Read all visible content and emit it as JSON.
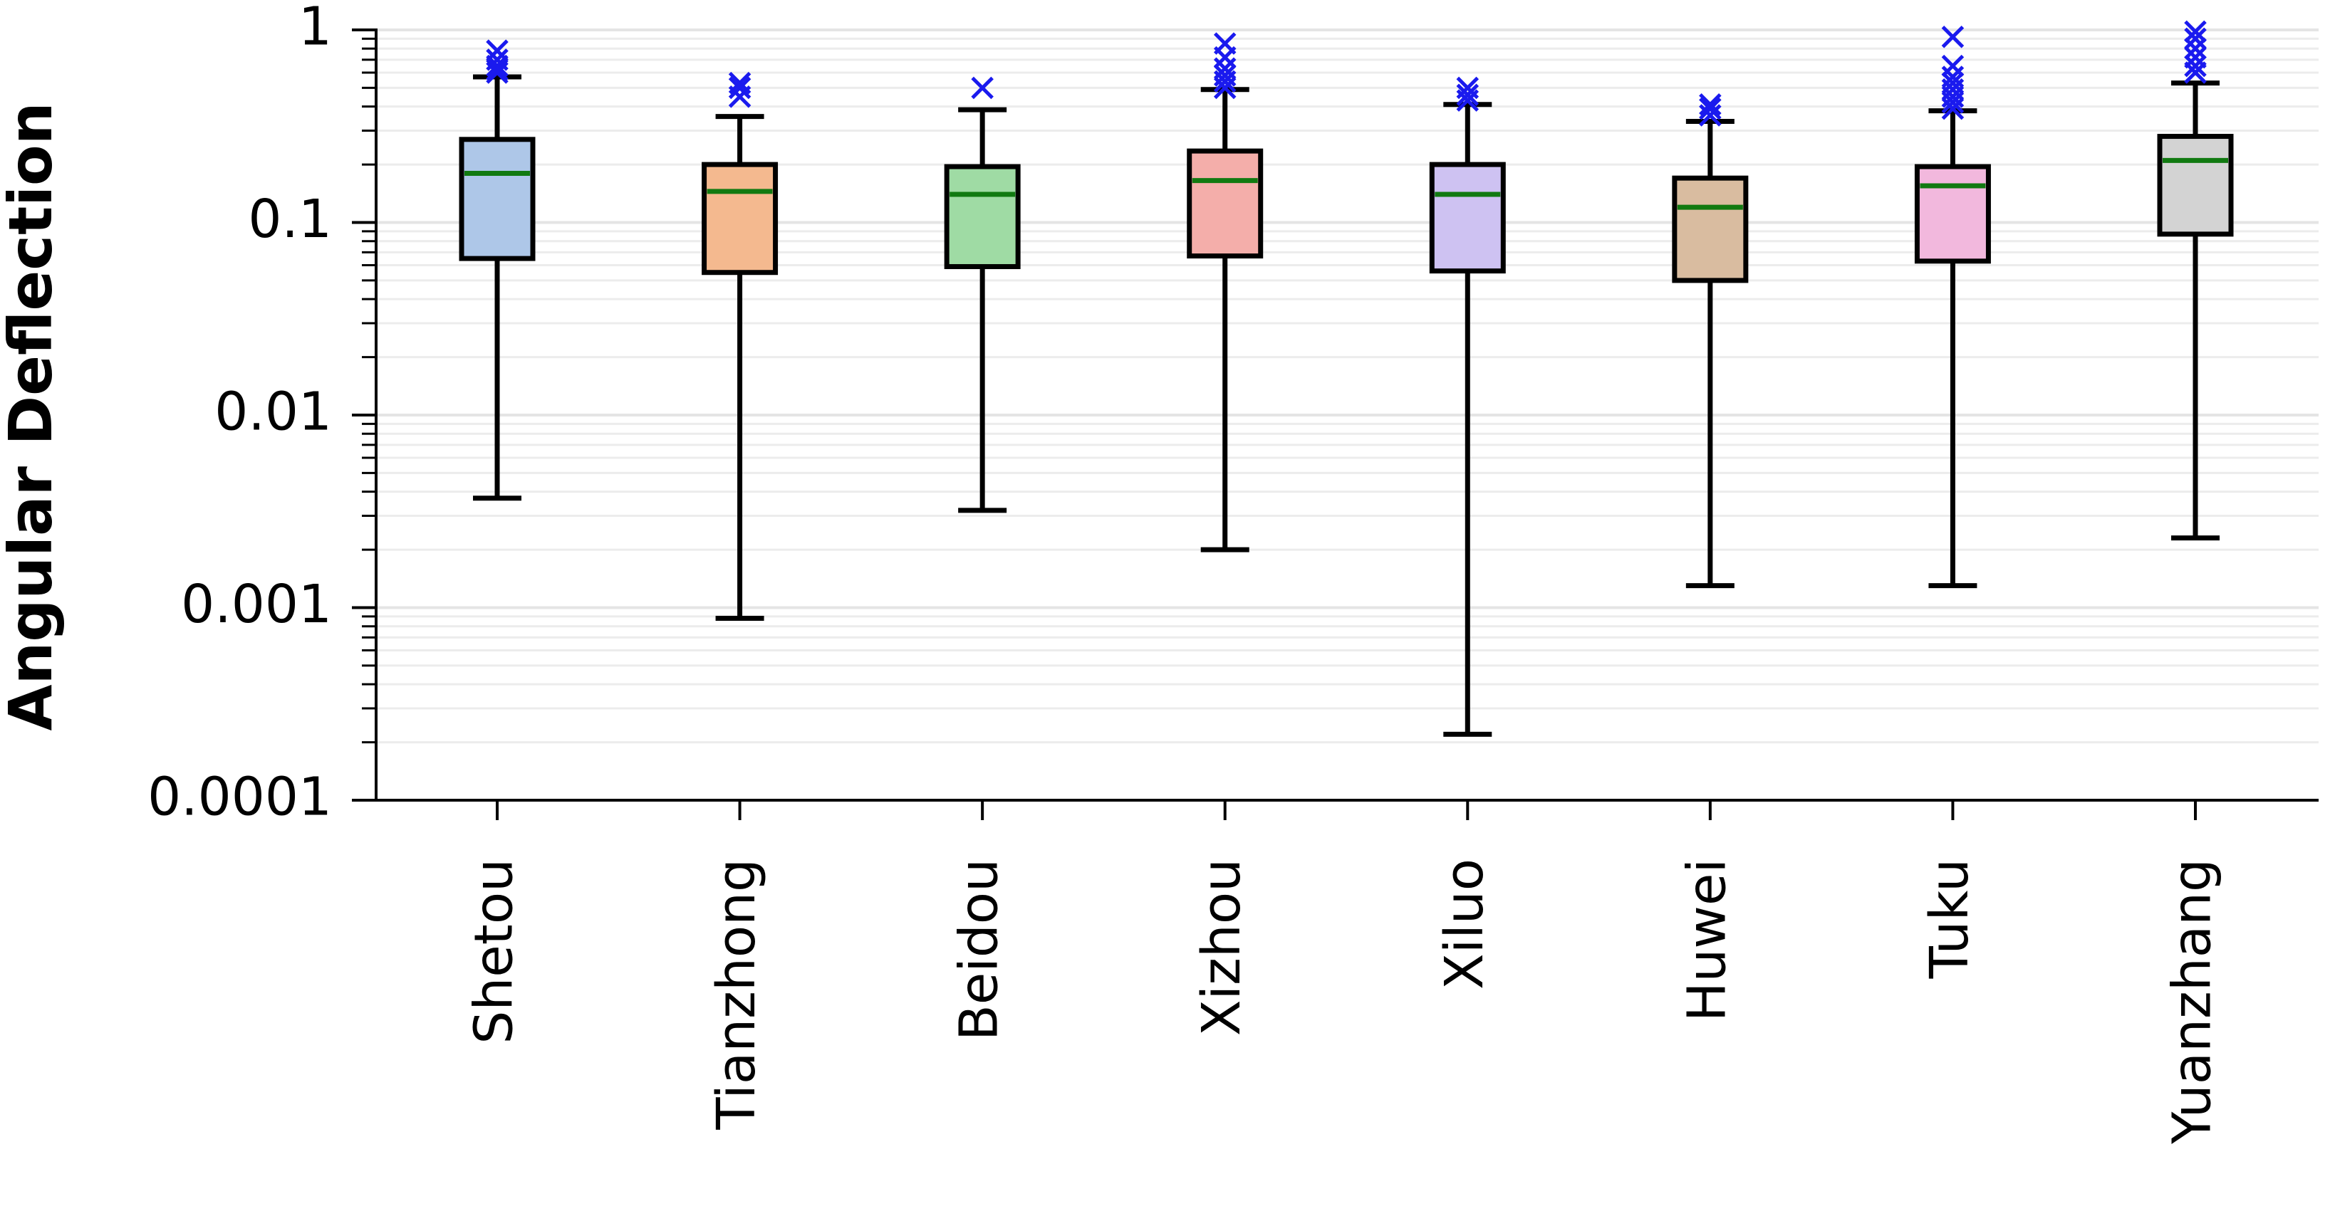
{
  "chart_data": {
    "type": "boxplot",
    "ylabel": "Angular Deflection",
    "xlabel": "",
    "yscale": "log",
    "ylim": [
      0.0001,
      1
    ],
    "yticks": [
      {
        "value": 1,
        "label": "1"
      },
      {
        "value": 0.1,
        "label": "0.1"
      },
      {
        "value": 0.01,
        "label": "0.01"
      },
      {
        "value": 0.001,
        "label": "0.001"
      },
      {
        "value": 0.0001,
        "label": "0.0001"
      }
    ],
    "grid": "horizontal minor and major",
    "categories": [
      "Shetou",
      "Tianzhong",
      "Beidou",
      "Xizhou",
      "Xiluo",
      "Huwei",
      "Tuku",
      "Yuanzhang"
    ],
    "boxes": [
      {
        "name": "Shetou",
        "whisker_low": 0.0037,
        "q1": 0.065,
        "median": 0.18,
        "q3": 0.27,
        "whisker_high": 0.57,
        "outliers": [
          0.6,
          0.62,
          0.65,
          0.7,
          0.78
        ],
        "color": "#aec7e8"
      },
      {
        "name": "Tianzhong",
        "whisker_low": 0.00088,
        "q1": 0.055,
        "median": 0.145,
        "q3": 0.2,
        "whisker_high": 0.355,
        "outliers": [
          0.45,
          0.5,
          0.53
        ],
        "color": "#f4b98f"
      },
      {
        "name": "Beidou",
        "whisker_low": 0.0032,
        "q1": 0.059,
        "median": 0.14,
        "q3": 0.195,
        "whisker_high": 0.385,
        "outliers": [
          0.5
        ],
        "color": "#9fdba4"
      },
      {
        "name": "Xizhou",
        "whisker_low": 0.002,
        "q1": 0.067,
        "median": 0.165,
        "q3": 0.235,
        "whisker_high": 0.49,
        "outliers": [
          0.5,
          0.54,
          0.58,
          0.63,
          0.72,
          0.85
        ],
        "color": "#f4aeaa"
      },
      {
        "name": "Xiluo",
        "whisker_low": 0.00022,
        "q1": 0.056,
        "median": 0.14,
        "q3": 0.2,
        "whisker_high": 0.41,
        "outliers": [
          0.43,
          0.46,
          0.5
        ],
        "color": "#cec2f2"
      },
      {
        "name": "Huwei",
        "whisker_low": 0.0013,
        "q1": 0.05,
        "median": 0.12,
        "q3": 0.17,
        "whisker_high": 0.335,
        "outliers": [
          0.36,
          0.39,
          0.41
        ],
        "color": "#d9bca0"
      },
      {
        "name": "Tuku",
        "whisker_low": 0.0013,
        "q1": 0.063,
        "median": 0.155,
        "q3": 0.195,
        "whisker_high": 0.38,
        "outliers": [
          0.39,
          0.42,
          0.45,
          0.49,
          0.53,
          0.57,
          0.65,
          0.92
        ],
        "color": "#f2b8dd"
      },
      {
        "name": "Yuanzhang",
        "whisker_low": 0.0023,
        "q1": 0.087,
        "median": 0.21,
        "q3": 0.28,
        "whisker_high": 0.53,
        "outliers": [
          0.6,
          0.65,
          0.72,
          0.8,
          0.9,
          0.98
        ],
        "color": "#d3d3d3"
      }
    ],
    "median_color": "#117a11",
    "outlier_color": "#1a1aee",
    "outlier_marker": "x"
  }
}
